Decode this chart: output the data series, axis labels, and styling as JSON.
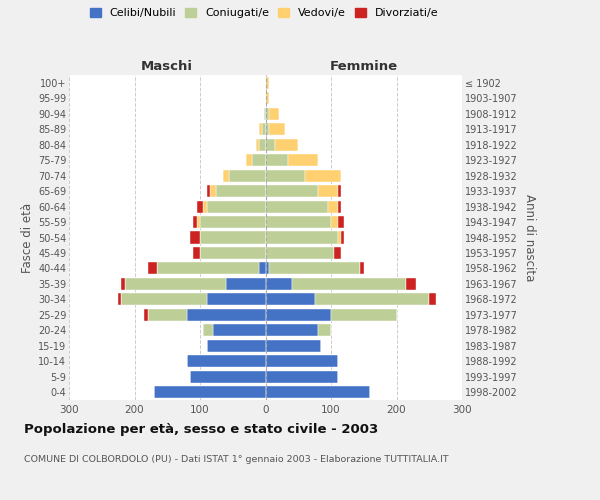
{
  "age_groups": [
    "0-4",
    "5-9",
    "10-14",
    "15-19",
    "20-24",
    "25-29",
    "30-34",
    "35-39",
    "40-44",
    "45-49",
    "50-54",
    "55-59",
    "60-64",
    "65-69",
    "70-74",
    "75-79",
    "80-84",
    "85-89",
    "90-94",
    "95-99",
    "100+"
  ],
  "birth_years": [
    "1998-2002",
    "1993-1997",
    "1988-1992",
    "1983-1987",
    "1978-1982",
    "1973-1977",
    "1968-1972",
    "1963-1967",
    "1958-1962",
    "1953-1957",
    "1948-1952",
    "1943-1947",
    "1938-1942",
    "1933-1937",
    "1928-1932",
    "1923-1927",
    "1918-1922",
    "1913-1917",
    "1908-1912",
    "1903-1907",
    "≤ 1902"
  ],
  "males": {
    "celibi": [
      170,
      115,
      120,
      90,
      80,
      120,
      90,
      60,
      10,
      0,
      0,
      0,
      0,
      0,
      0,
      0,
      0,
      0,
      0,
      0,
      0
    ],
    "coniugati": [
      0,
      0,
      0,
      0,
      15,
      60,
      130,
      155,
      155,
      100,
      100,
      100,
      90,
      75,
      55,
      20,
      10,
      5,
      2,
      0,
      0
    ],
    "vedovi": [
      0,
      0,
      0,
      0,
      0,
      0,
      0,
      0,
      0,
      0,
      0,
      5,
      5,
      10,
      10,
      10,
      5,
      5,
      0,
      0,
      0
    ],
    "divorziati": [
      0,
      0,
      0,
      0,
      0,
      5,
      5,
      5,
      15,
      10,
      15,
      5,
      10,
      5,
      0,
      0,
      0,
      0,
      0,
      0,
      0
    ]
  },
  "females": {
    "nubili": [
      160,
      110,
      110,
      85,
      80,
      100,
      75,
      40,
      5,
      0,
      0,
      0,
      0,
      0,
      0,
      0,
      0,
      0,
      0,
      0,
      0
    ],
    "coniugate": [
      0,
      0,
      0,
      0,
      20,
      100,
      175,
      175,
      140,
      105,
      110,
      100,
      95,
      80,
      60,
      35,
      15,
      5,
      5,
      0,
      0
    ],
    "vedove": [
      0,
      0,
      0,
      0,
      0,
      0,
      0,
      0,
      0,
      0,
      5,
      10,
      15,
      30,
      55,
      45,
      35,
      25,
      15,
      5,
      5
    ],
    "divorziate": [
      0,
      0,
      0,
      0,
      0,
      0,
      10,
      15,
      5,
      10,
      5,
      10,
      5,
      5,
      0,
      0,
      0,
      0,
      0,
      0,
      0
    ]
  },
  "colors": {
    "celibi": "#4472C4",
    "coniugati": "#BDCF96",
    "vedovi": "#FFD070",
    "divorziati": "#CC2222"
  },
  "xlim": 300,
  "title": "Popolazione per età, sesso e stato civile - 2003",
  "subtitle": "COMUNE DI COLBORDOLO (PU) - Dati ISTAT 1° gennaio 2003 - Elaborazione TUTTITALIA.IT",
  "ylabel_left": "Fasce di età",
  "ylabel_right": "Anni di nascita",
  "xlabel_left": "Maschi",
  "xlabel_right": "Femmine",
  "bg_color": "#f0f0f0",
  "plot_bg": "#ffffff"
}
